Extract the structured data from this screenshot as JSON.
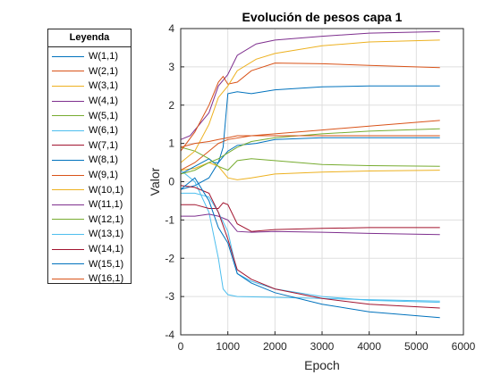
{
  "chart_data": {
    "type": "line",
    "title": "Evolución de pesos capa 1",
    "xlabel": "Epoch",
    "ylabel": "Valor",
    "xlim": [
      0,
      6000
    ],
    "ylim": [
      -4,
      4
    ],
    "xticks": [
      0,
      1000,
      2000,
      3000,
      4000,
      5000,
      6000
    ],
    "yticks": [
      -4,
      -3,
      -2,
      -1,
      0,
      1,
      2,
      3,
      4
    ],
    "grid": true,
    "legend": {
      "title": "Leyenda",
      "placement": "outside-left"
    },
    "series": [
      {
        "name": "W(1,1)",
        "color": "#0072BD",
        "points": [
          [
            0,
            -0.2
          ],
          [
            300,
            -0.1
          ],
          [
            600,
            0.1
          ],
          [
            800,
            0.5
          ],
          [
            1000,
            0.8
          ],
          [
            1200,
            0.95
          ],
          [
            1600,
            1.0
          ],
          [
            2000,
            1.1
          ],
          [
            3000,
            1.15
          ],
          [
            4000,
            1.15
          ],
          [
            5500,
            1.15
          ]
        ]
      },
      {
        "name": "W(2,1)",
        "color": "#D95319",
        "points": [
          [
            0,
            0.3
          ],
          [
            300,
            0.5
          ],
          [
            600,
            0.8
          ],
          [
            800,
            1.0
          ],
          [
            1000,
            1.1
          ],
          [
            1500,
            1.2
          ],
          [
            2000,
            1.25
          ],
          [
            3000,
            1.35
          ],
          [
            4000,
            1.45
          ],
          [
            5000,
            1.55
          ],
          [
            5500,
            1.6
          ]
        ]
      },
      {
        "name": "W(3,1)",
        "color": "#EDB120",
        "points": [
          [
            0,
            0.3
          ],
          [
            300,
            0.35
          ],
          [
            600,
            0.5
          ],
          [
            800,
            0.4
          ],
          [
            1000,
            0.1
          ],
          [
            1200,
            0.05
          ],
          [
            1500,
            0.1
          ],
          [
            2000,
            0.2
          ],
          [
            3000,
            0.25
          ],
          [
            4000,
            0.28
          ],
          [
            5500,
            0.3
          ]
        ]
      },
      {
        "name": "W(4,1)",
        "color": "#7E2F8E",
        "points": [
          [
            0,
            1.1
          ],
          [
            200,
            1.2
          ],
          [
            400,
            1.5
          ],
          [
            600,
            1.8
          ],
          [
            800,
            2.5
          ],
          [
            1000,
            2.8
          ],
          [
            1200,
            3.3
          ],
          [
            1600,
            3.6
          ],
          [
            2000,
            3.7
          ],
          [
            3000,
            3.8
          ],
          [
            4000,
            3.88
          ],
          [
            5500,
            3.92
          ]
        ]
      },
      {
        "name": "W(5,1)",
        "color": "#77AC30",
        "points": [
          [
            0,
            0.9
          ],
          [
            300,
            0.8
          ],
          [
            600,
            0.6
          ],
          [
            800,
            0.4
          ],
          [
            1000,
            0.3
          ],
          [
            1200,
            0.55
          ],
          [
            1500,
            0.6
          ],
          [
            2000,
            0.55
          ],
          [
            3000,
            0.45
          ],
          [
            4000,
            0.42
          ],
          [
            5500,
            0.4
          ]
        ]
      },
      {
        "name": "W(6,1)",
        "color": "#4DBEEE",
        "points": [
          [
            0,
            0.3
          ],
          [
            300,
            0.0
          ],
          [
            600,
            -0.8
          ],
          [
            800,
            -2.0
          ],
          [
            900,
            -2.8
          ],
          [
            1000,
            -2.95
          ],
          [
            1200,
            -3.0
          ],
          [
            2000,
            -3.02
          ],
          [
            3000,
            -3.05
          ],
          [
            4000,
            -3.08
          ],
          [
            5500,
            -3.12
          ]
        ]
      },
      {
        "name": "W(7,1)",
        "color": "#A2142F",
        "points": [
          [
            0,
            -0.6
          ],
          [
            300,
            -0.6
          ],
          [
            600,
            -0.7
          ],
          [
            800,
            -0.7
          ],
          [
            900,
            -0.55
          ],
          [
            1000,
            -0.6
          ],
          [
            1200,
            -1.1
          ],
          [
            1500,
            -1.3
          ],
          [
            2000,
            -1.25
          ],
          [
            3000,
            -1.22
          ],
          [
            4000,
            -1.2
          ],
          [
            5500,
            -1.2
          ]
        ]
      },
      {
        "name": "W(8,1)",
        "color": "#0072BD",
        "points": [
          [
            0,
            0.2
          ],
          [
            300,
            0.4
          ],
          [
            600,
            0.6
          ],
          [
            700,
            0.5
          ],
          [
            800,
            0.5
          ],
          [
            900,
            0.9
          ],
          [
            1000,
            2.3
          ],
          [
            1200,
            2.35
          ],
          [
            1500,
            2.3
          ],
          [
            2000,
            2.4
          ],
          [
            3000,
            2.48
          ],
          [
            4000,
            2.5
          ],
          [
            5500,
            2.5
          ]
        ]
      },
      {
        "name": "W(9,1)",
        "color": "#D95319",
        "points": [
          [
            0,
            0.8
          ],
          [
            300,
            1.3
          ],
          [
            600,
            2.0
          ],
          [
            800,
            2.6
          ],
          [
            900,
            2.75
          ],
          [
            1000,
            2.55
          ],
          [
            1200,
            2.6
          ],
          [
            1500,
            2.9
          ],
          [
            2000,
            3.1
          ],
          [
            3000,
            3.08
          ],
          [
            4000,
            3.04
          ],
          [
            5500,
            2.98
          ]
        ]
      },
      {
        "name": "W(10,1)",
        "color": "#EDB120",
        "points": [
          [
            0,
            0.5
          ],
          [
            300,
            0.8
          ],
          [
            600,
            1.5
          ],
          [
            800,
            2.2
          ],
          [
            1000,
            2.5
          ],
          [
            1200,
            2.9
          ],
          [
            1600,
            3.2
          ],
          [
            2000,
            3.35
          ],
          [
            3000,
            3.55
          ],
          [
            4000,
            3.65
          ],
          [
            5500,
            3.7
          ]
        ]
      },
      {
        "name": "W(11,1)",
        "color": "#7E2F8E",
        "points": [
          [
            0,
            -0.9
          ],
          [
            300,
            -0.9
          ],
          [
            600,
            -0.85
          ],
          [
            800,
            -0.9
          ],
          [
            1000,
            -1.0
          ],
          [
            1200,
            -1.3
          ],
          [
            1500,
            -1.32
          ],
          [
            2000,
            -1.3
          ],
          [
            3000,
            -1.32
          ],
          [
            4000,
            -1.35
          ],
          [
            5500,
            -1.38
          ]
        ]
      },
      {
        "name": "W(12,1)",
        "color": "#77AC30",
        "points": [
          [
            0,
            0.2
          ],
          [
            300,
            0.3
          ],
          [
            600,
            0.5
          ],
          [
            800,
            0.6
          ],
          [
            1000,
            0.75
          ],
          [
            1200,
            0.9
          ],
          [
            1500,
            1.05
          ],
          [
            2000,
            1.15
          ],
          [
            3000,
            1.25
          ],
          [
            4000,
            1.32
          ],
          [
            5500,
            1.38
          ]
        ]
      },
      {
        "name": "W(13,1)",
        "color": "#4DBEEE",
        "points": [
          [
            0,
            -0.3
          ],
          [
            300,
            -0.3
          ],
          [
            600,
            -0.4
          ],
          [
            800,
            -0.8
          ],
          [
            1000,
            -1.3
          ],
          [
            1200,
            -2.4
          ],
          [
            1500,
            -2.6
          ],
          [
            2000,
            -2.8
          ],
          [
            3000,
            -3.0
          ],
          [
            4000,
            -3.1
          ],
          [
            5500,
            -3.15
          ]
        ]
      },
      {
        "name": "W(14,1)",
        "color": "#A2142F",
        "points": [
          [
            0,
            -0.1
          ],
          [
            300,
            -0.15
          ],
          [
            600,
            -0.3
          ],
          [
            800,
            -0.8
          ],
          [
            1000,
            -1.5
          ],
          [
            1200,
            -2.3
          ],
          [
            1500,
            -2.55
          ],
          [
            2000,
            -2.8
          ],
          [
            3000,
            -3.05
          ],
          [
            4000,
            -3.2
          ],
          [
            5500,
            -3.3
          ]
        ]
      },
      {
        "name": "W(15,1)",
        "color": "#0072BD",
        "points": [
          [
            0,
            -0.2
          ],
          [
            300,
            0.1
          ],
          [
            600,
            -0.5
          ],
          [
            800,
            -1.2
          ],
          [
            1000,
            -1.6
          ],
          [
            1200,
            -2.4
          ],
          [
            1500,
            -2.65
          ],
          [
            2000,
            -2.9
          ],
          [
            3000,
            -3.2
          ],
          [
            4000,
            -3.4
          ],
          [
            5500,
            -3.55
          ]
        ]
      },
      {
        "name": "W(16,1)",
        "color": "#D95319",
        "points": [
          [
            0,
            0.9
          ],
          [
            300,
            1.0
          ],
          [
            600,
            1.05
          ],
          [
            800,
            1.1
          ],
          [
            1000,
            1.15
          ],
          [
            1200,
            1.2
          ],
          [
            1500,
            1.2
          ],
          [
            2000,
            1.2
          ],
          [
            3000,
            1.2
          ],
          [
            4000,
            1.2
          ],
          [
            5500,
            1.2
          ]
        ]
      }
    ]
  }
}
